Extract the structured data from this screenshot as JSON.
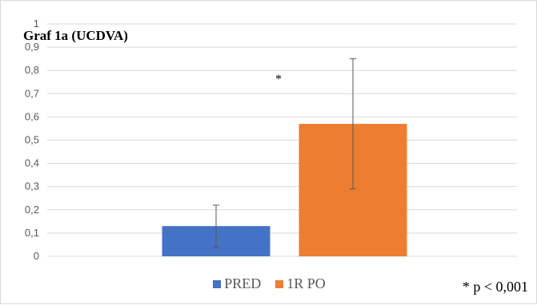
{
  "chart_data": {
    "type": "bar",
    "title": "Graf 1a (UCDVA)",
    "categories": [
      "PRED",
      "1R PO"
    ],
    "values": [
      0.13,
      0.57
    ],
    "error_low": [
      0.04,
      0.29
    ],
    "error_high": [
      0.22,
      0.85
    ],
    "colors": [
      "#4472c4",
      "#ed7d31"
    ],
    "ylim": [
      0,
      1
    ],
    "yticks": [
      "0",
      "0,1",
      "0,2",
      "0,3",
      "0,4",
      "0,5",
      "0,6",
      "0,7",
      "0,8",
      "0,9",
      "1"
    ],
    "ytick_values": [
      0,
      0.1,
      0.2,
      0.3,
      0.4,
      0.5,
      0.6,
      0.7,
      0.8,
      0.9,
      1
    ],
    "grid": true,
    "legend": [
      {
        "name": "PRED",
        "color": "#4472c4"
      },
      {
        "name": "1R PO",
        "color": "#ed7d31"
      }
    ],
    "legend_position": "bottom",
    "significance_marker": "*",
    "footnote": "* p < 0,001"
  }
}
